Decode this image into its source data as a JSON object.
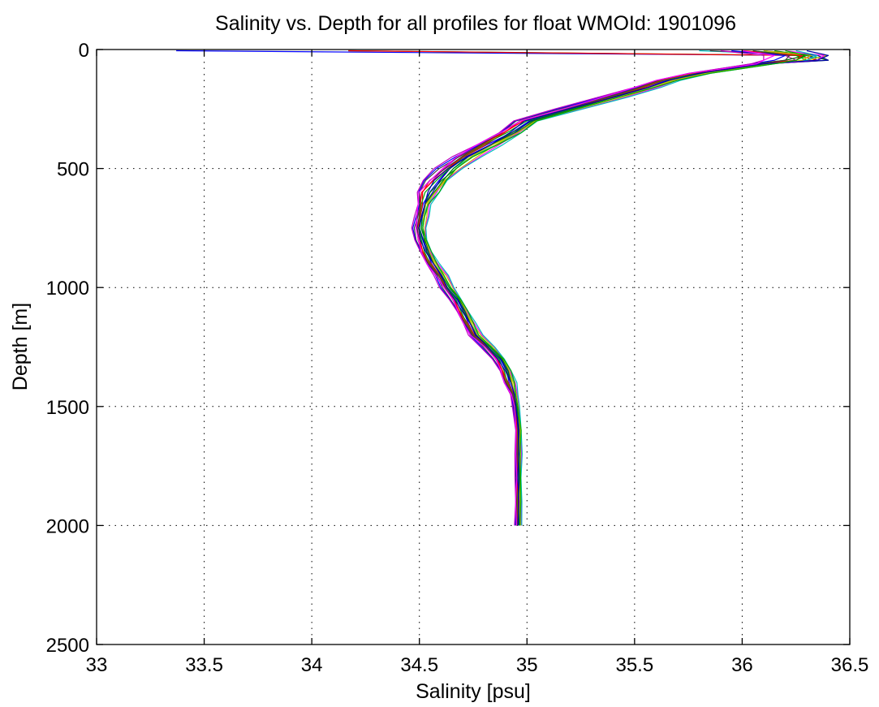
{
  "chart_data": {
    "type": "line",
    "title": "Salinity vs. Depth for all profiles for float WMOId: 1901096",
    "xlabel": "Salinity [psu]",
    "ylabel": "Depth [m]",
    "xlim": [
      33,
      36.5
    ],
    "ylim": [
      0,
      2500
    ],
    "y_reversed": true,
    "grid": true,
    "xticks": [
      33,
      33.5,
      34,
      34.5,
      35,
      35.5,
      36,
      36.5
    ],
    "xtick_labels": [
      "33",
      "33.5",
      "34",
      "34.5",
      "35",
      "35.5",
      "36",
      "36.5"
    ],
    "yticks": [
      0,
      500,
      1000,
      1500,
      2000,
      2500
    ],
    "ytick_labels": [
      "0",
      "500",
      "1000",
      "1500",
      "2000",
      "2500"
    ],
    "colors": [
      "#0000ff",
      "#008000",
      "#ff0000",
      "#00bfbf",
      "#bf00bf",
      "#bfbf00",
      "#404040",
      "#0000aa",
      "#00aa00",
      "#ff00ff"
    ],
    "base_profile": {
      "depth": [
        5,
        20,
        40,
        60,
        80,
        100,
        130,
        160,
        200,
        250,
        300,
        350,
        400,
        450,
        500,
        550,
        600,
        650,
        700,
        750,
        800,
        850,
        900,
        950,
        1000,
        1050,
        1100,
        1150,
        1200,
        1250,
        1300,
        1350,
        1400,
        1450,
        1500,
        1600,
        1700,
        1800,
        1900,
        2000
      ],
      "salinity": [
        36.2,
        36.3,
        36.25,
        36.1,
        35.95,
        35.8,
        35.65,
        35.55,
        35.4,
        35.2,
        35.0,
        34.92,
        34.82,
        34.72,
        34.64,
        34.58,
        34.54,
        34.52,
        34.51,
        34.5,
        34.51,
        34.53,
        34.56,
        34.6,
        34.63,
        34.67,
        34.7,
        34.73,
        34.76,
        34.82,
        34.87,
        34.9,
        34.92,
        34.94,
        34.95,
        34.96,
        34.96,
        34.96,
        34.96,
        34.96
      ]
    },
    "series": [
      {
        "offset": 0.0,
        "surface": [
          33.37,
          36.3,
          36.35
        ]
      },
      {
        "offset": 0.02,
        "surface": [
          34.17,
          36.3,
          36.4
        ]
      },
      {
        "offset": -0.02,
        "surface": [
          34.17,
          36.25,
          36.35
        ]
      },
      {
        "offset": 0.03,
        "surface": [
          35.8,
          36.35,
          36.3
        ]
      },
      {
        "offset": -0.03,
        "surface": [
          35.9,
          36.2,
          36.25
        ]
      },
      {
        "offset": 0.04,
        "surface": [
          36.0,
          36.4,
          36.3
        ]
      },
      {
        "offset": -0.04,
        "surface": [
          35.85,
          36.3,
          36.2
        ]
      },
      {
        "offset": 0.01,
        "surface": [
          36.1,
          36.35,
          36.4
        ]
      },
      {
        "offset": -0.01,
        "surface": [
          36.05,
          36.25,
          36.3
        ]
      },
      {
        "offset": 0.05,
        "surface": [
          36.2,
          36.38,
          36.35
        ]
      },
      {
        "offset": -0.05,
        "surface": [
          35.95,
          36.2,
          36.15
        ]
      },
      {
        "offset": 0.02,
        "surface": [
          36.15,
          36.3,
          36.2
        ]
      },
      {
        "offset": -0.02,
        "surface": [
          36.0,
          36.28,
          36.25
        ]
      },
      {
        "offset": 0.06,
        "surface": [
          36.25,
          36.35,
          36.3
        ]
      },
      {
        "offset": -0.06,
        "surface": [
          35.9,
          36.1,
          36.1
        ]
      },
      {
        "offset": 0.03,
        "surface": [
          36.1,
          36.32,
          36.28
        ]
      },
      {
        "offset": -0.03,
        "surface": [
          36.05,
          36.22,
          36.2
        ]
      },
      {
        "offset": 0.0,
        "surface": [
          36.3,
          36.4,
          36.35
        ]
      },
      {
        "offset": 0.04,
        "surface": [
          36.2,
          36.3,
          36.25
        ]
      },
      {
        "offset": -0.04,
        "surface": [
          36.0,
          36.15,
          36.1
        ]
      }
    ]
  }
}
